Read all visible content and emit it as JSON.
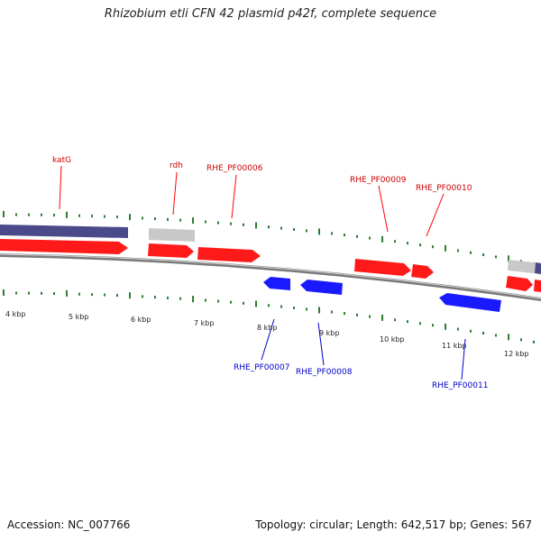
{
  "header": {
    "title": "Rhizobium etli CFN 42 plasmid p42f, complete sequence"
  },
  "footer": {
    "accession": "Accession: NC_007766",
    "summary": "Topology: circular; Length: 642,517 bp; Genes: 567"
  },
  "colors": {
    "forward_gene": "#ff1a1a",
    "reverse_gene": "#1a1aff",
    "grey_feature": "#c8c8c8",
    "purple_feature": "#4a4a8a",
    "tick": "#2e7d32",
    "backbone": "#7a7a7a"
  },
  "map": {
    "tick_labels": [
      "4 kbp",
      "5 kbp",
      "6 kbp",
      "7 kbp",
      "8 kbp",
      "9 kbp",
      "10 kbp",
      "11 kbp",
      "12 kbp"
    ],
    "forward_labels": [
      "katG",
      "rdh",
      "RHE_PF00006",
      "RHE_PF00009",
      "RHE_PF00010"
    ],
    "reverse_labels": [
      "RHE_PF00007",
      "RHE_PF00008",
      "RHE_PF00011"
    ]
  }
}
